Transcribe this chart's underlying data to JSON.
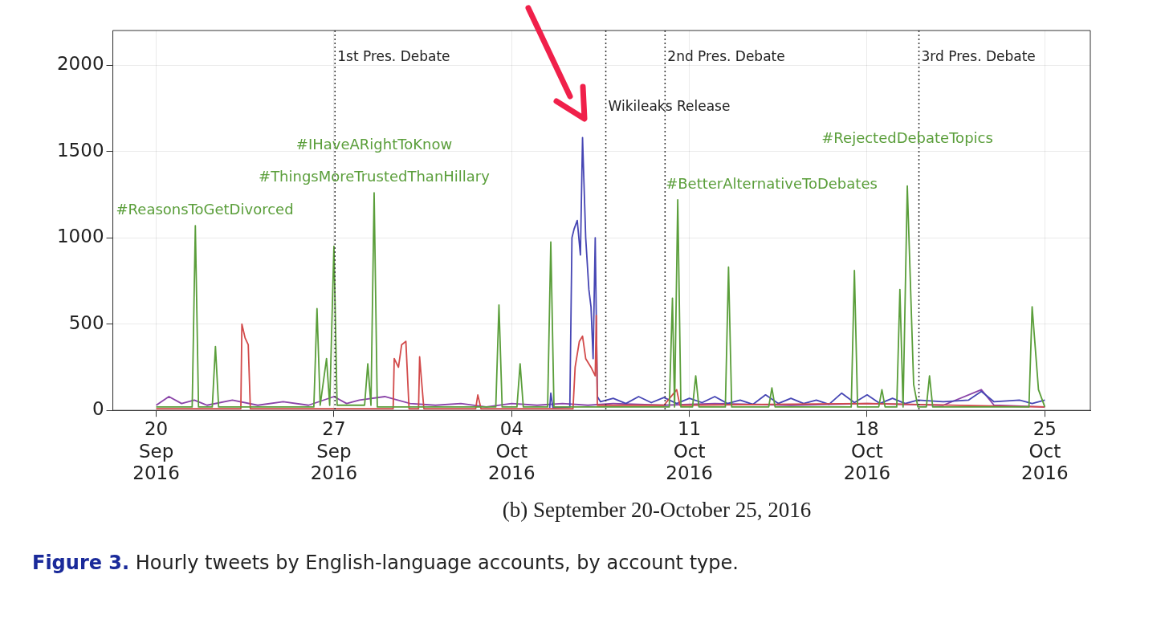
{
  "chart_data": {
    "type": "line",
    "subtitle": "(b) September 20-October 25, 2016",
    "xlim": [
      "2016-09-18T07:00",
      "2016-10-26T19:00"
    ],
    "xticks": [
      {
        "value": "2016-09-20",
        "label": "20 Sep 2016"
      },
      {
        "value": "2016-09-27",
        "label": "27 Sep 2016"
      },
      {
        "value": "2016-10-04",
        "label": "04 Oct 2016"
      },
      {
        "value": "2016-10-11",
        "label": "11 Oct 2016"
      },
      {
        "value": "2016-10-18",
        "label": "18 Oct 2016"
      },
      {
        "value": "2016-10-25",
        "label": "25 Oct 2016"
      }
    ],
    "ylim": [
      0,
      2200
    ],
    "yticks": [
      0,
      500,
      1000,
      1500,
      2000
    ],
    "grid": true,
    "legend": false,
    "marker": "none",
    "line_style": "solid",
    "series": [
      {
        "color": "#5a9e3a",
        "x": [
          "2016-09-20T00:00",
          "2016-09-21T10:00",
          "2016-09-21T13:00",
          "2016-09-21T16:00",
          "2016-09-22T05:00",
          "2016-09-22T08:00",
          "2016-09-22T11:00",
          "2016-09-26T05:00",
          "2016-09-26T08:00",
          "2016-09-26T11:00",
          "2016-09-26T17:00",
          "2016-09-26T20:00",
          "2016-09-27T00:00",
          "2016-09-27T03:00",
          "2016-09-28T05:00",
          "2016-09-28T08:00",
          "2016-09-28T11:00",
          "2016-09-28T14:00",
          "2016-09-28T17:00",
          "2016-10-03T09:00",
          "2016-10-03T12:00",
          "2016-10-03T15:00",
          "2016-10-04T05:00",
          "2016-10-04T08:00",
          "2016-10-04T11:00",
          "2016-10-05T10:00",
          "2016-10-05T13:00",
          "2016-10-05T16:00",
          "2016-10-10T05:00",
          "2016-10-10T08:00",
          "2016-10-10T10:00",
          "2016-10-10T13:00",
          "2016-10-10T16:00",
          "2016-10-11T03:00",
          "2016-10-11T06:00",
          "2016-10-11T09:00",
          "2016-10-12T10:00",
          "2016-10-12T13:00",
          "2016-10-12T16:00",
          "2016-10-14T03:00",
          "2016-10-14T06:00",
          "2016-10-14T09:00",
          "2016-10-17T09:00",
          "2016-10-17T12:00",
          "2016-10-17T15:00",
          "2016-10-18T11:00",
          "2016-10-18T14:00",
          "2016-10-18T17:00",
          "2016-10-19T04:00",
          "2016-10-19T07:00",
          "2016-10-19T10:00",
          "2016-10-19T14:00",
          "2016-10-19T20:00",
          "2016-10-20T00:00",
          "2016-10-20T08:00",
          "2016-10-20T11:00",
          "2016-10-20T14:00",
          "2016-10-24T09:00",
          "2016-10-24T12:00",
          "2016-10-24T18:00",
          "2016-10-25T00:00"
        ],
        "values": [
          20,
          20,
          1070,
          20,
          20,
          370,
          20,
          20,
          590,
          30,
          300,
          30,
          950,
          30,
          30,
          270,
          30,
          1260,
          20,
          20,
          610,
          20,
          20,
          270,
          20,
          20,
          975,
          20,
          20,
          650,
          20,
          1220,
          20,
          20,
          200,
          20,
          20,
          830,
          20,
          20,
          130,
          20,
          20,
          810,
          20,
          20,
          120,
          20,
          20,
          700,
          20,
          1300,
          150,
          20,
          20,
          200,
          20,
          20,
          600,
          120,
          20
        ]
      },
      {
        "color": "#d24a4a",
        "x": [
          "2016-09-20T00:00",
          "2016-09-23T08:00",
          "2016-09-23T09:00",
          "2016-09-23T12:00",
          "2016-09-23T15:00",
          "2016-09-23T17:00",
          "2016-09-29T08:00",
          "2016-09-29T09:00",
          "2016-09-29T13:00",
          "2016-09-29T16:00",
          "2016-09-29T20:00",
          "2016-09-29T23:00",
          "2016-09-30T08:00",
          "2016-09-30T09:00",
          "2016-09-30T13:00",
          "2016-10-02T14:00",
          "2016-10-02T16:00",
          "2016-10-02T19:00",
          "2016-10-06T10:00",
          "2016-10-06T12:00",
          "2016-10-06T16:00",
          "2016-10-06T19:00",
          "2016-10-06T22:00",
          "2016-10-07T03:00",
          "2016-10-07T07:00",
          "2016-10-07T08:00",
          "2016-10-07T09:00",
          "2016-10-10T00:00",
          "2016-10-10T12:00",
          "2016-10-10T15:00",
          "2016-10-18T00:00",
          "2016-10-25T00:00"
        ],
        "values": [
          10,
          10,
          500,
          420,
          380,
          10,
          10,
          300,
          250,
          380,
          400,
          10,
          10,
          310,
          10,
          10,
          90,
          10,
          10,
          250,
          400,
          430,
          300,
          250,
          200,
          550,
          30,
          30,
          120,
          30,
          40,
          20
        ]
      },
      {
        "color": "#4646b4",
        "x": [
          "2016-10-05T12:00",
          "2016-10-05T13:00",
          "2016-10-05T15:00",
          "2016-10-06T07:00",
          "2016-10-06T09:00",
          "2016-10-06T11:00",
          "2016-10-06T14:00",
          "2016-10-06T17:00",
          "2016-10-06T19:00",
          "2016-10-06T22:00",
          "2016-10-07T01:00",
          "2016-10-07T03:00",
          "2016-10-07T05:00",
          "2016-10-07T07:00",
          "2016-10-07T09:00",
          "2016-10-07T12:00",
          "2016-10-08T00:00",
          "2016-10-08T12:00",
          "2016-10-09T00:00",
          "2016-10-09T12:00",
          "2016-10-10T00:00",
          "2016-10-10T12:00",
          "2016-10-11T00:00",
          "2016-10-11T12:00",
          "2016-10-12T00:00",
          "2016-10-12T12:00",
          "2016-10-13T00:00",
          "2016-10-13T12:00",
          "2016-10-14T00:00",
          "2016-10-14T12:00",
          "2016-10-15T00:00",
          "2016-10-15T12:00",
          "2016-10-16T00:00",
          "2016-10-16T12:00",
          "2016-10-17T00:00",
          "2016-10-17T12:00",
          "2016-10-18T00:00",
          "2016-10-18T12:00",
          "2016-10-19T00:00",
          "2016-10-19T12:00",
          "2016-10-20T00:00",
          "2016-10-21T00:00",
          "2016-10-22T00:00",
          "2016-10-22T12:00",
          "2016-10-23T00:00",
          "2016-10-24T00:00",
          "2016-10-24T12:00",
          "2016-10-25T00:00"
        ],
        "values": [
          15,
          100,
          15,
          20,
          1000,
          1050,
          1100,
          900,
          1580,
          1000,
          700,
          600,
          300,
          1000,
          80,
          50,
          70,
          40,
          80,
          45,
          75,
          40,
          70,
          45,
          80,
          40,
          60,
          35,
          90,
          40,
          70,
          40,
          60,
          35,
          100,
          45,
          90,
          40,
          70,
          40,
          60,
          50,
          60,
          110,
          50,
          60,
          40,
          60
        ]
      },
      {
        "color": "#8a44a8",
        "x": [
          "2016-09-20T00:00",
          "2016-09-20T12:00",
          "2016-09-21T00:00",
          "2016-09-21T12:00",
          "2016-09-22T00:00",
          "2016-09-23T00:00",
          "2016-09-24T00:00",
          "2016-09-25T00:00",
          "2016-09-26T00:00",
          "2016-09-27T00:00",
          "2016-09-27T12:00",
          "2016-09-28T00:00",
          "2016-09-29T00:00",
          "2016-09-30T00:00",
          "2016-10-01T00:00",
          "2016-10-02T00:00",
          "2016-10-03T00:00",
          "2016-10-04T00:00",
          "2016-10-05T00:00",
          "2016-10-06T00:00",
          "2016-10-07T00:00",
          "2016-10-08T00:00",
          "2016-10-10T00:00",
          "2016-10-12T00:00",
          "2016-10-15T00:00",
          "2016-10-18T00:00",
          "2016-10-21T00:00",
          "2016-10-22T12:00",
          "2016-10-23T00:00",
          "2016-10-25T00:00"
        ],
        "values": [
          30,
          80,
          40,
          60,
          30,
          60,
          30,
          50,
          30,
          80,
          40,
          60,
          80,
          40,
          30,
          40,
          20,
          40,
          30,
          40,
          30,
          40,
          30,
          40,
          30,
          40,
          30,
          120,
          30,
          20
        ]
      }
    ],
    "ref_lines": [
      {
        "axis": "x",
        "value": "2016-09-27T01:00",
        "label": "1st Pres. Debate",
        "line_style": "dotted"
      },
      {
        "axis": "x",
        "value": "2016-10-07T17:00",
        "label": "Wikileaks Release",
        "line_style": "dotted"
      },
      {
        "axis": "x",
        "value": "2016-10-10T01:00",
        "label": "2nd Pres. Debate",
        "line_style": "dotted"
      },
      {
        "axis": "x",
        "value": "2016-10-20T01:00",
        "label": "3rd Pres. Debate",
        "line_style": "dotted"
      }
    ],
    "annotations": [
      {
        "text": "#ReasonsToGetDivorced",
        "x": "2016-09-21T13:00",
        "y": 1070
      },
      {
        "text": "#ThingsMoreTrustedThanHillary",
        "x": "2016-09-28T14:00",
        "y": 1260
      },
      {
        "text": "#IHaveARightToKnow",
        "x": "2016-09-28T14:00",
        "y": 1260
      },
      {
        "text": "#BetterAlternativeToDebates",
        "x": "2016-10-10T13:00",
        "y": 1220
      },
      {
        "text": "#RejectedDebateTopics",
        "x": "2016-10-19T14:00",
        "y": 1300
      },
      "Figure 3. Hourly tweets by English-language accounts, by account type."
    ]
  }
}
